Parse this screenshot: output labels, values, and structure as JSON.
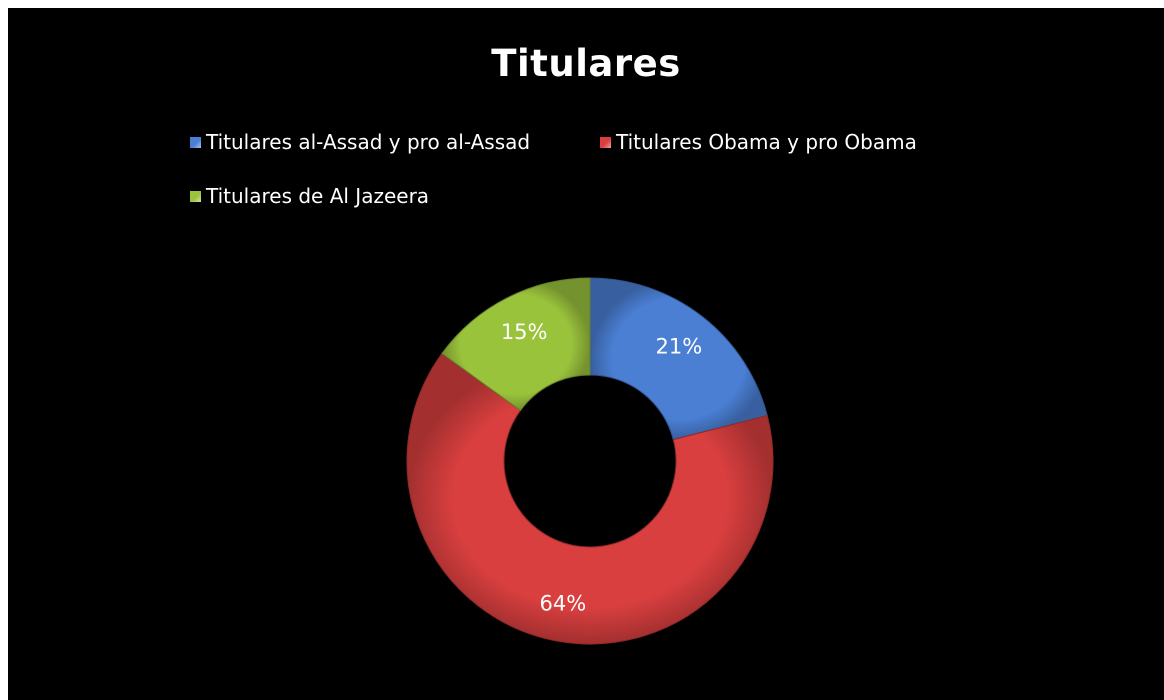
{
  "chart_data": {
    "type": "pie",
    "variant": "donut",
    "title": "Titulares",
    "legend_position": "top",
    "categories": [
      "Titulares al-Assad y pro al-Assad",
      "Titulares Obama y pro Obama",
      "Titulares de Al Jazeera"
    ],
    "values": [
      21,
      64,
      15
    ],
    "labels": [
      "21%",
      "64%",
      "15%"
    ],
    "colors": [
      "#4a7fd4",
      "#d93f3f",
      "#9ac33c"
    ],
    "background": "#000000"
  }
}
